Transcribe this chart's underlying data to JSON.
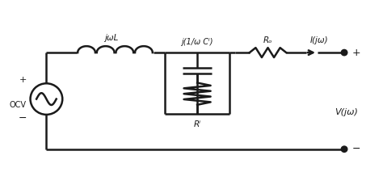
{
  "bg_color": "#ffffff",
  "line_color": "#1a1a1a",
  "line_width": 1.8,
  "fig_width": 4.74,
  "fig_height": 2.13,
  "dpi": 100,
  "labels": {
    "ocv": "OCV",
    "jwL": "jωL",
    "capacitor": "j(1/ω Cⁱ)",
    "Rf": "Rⁱ",
    "Ro": "Rₒ",
    "I": "I(jω)",
    "V": "V(jω)",
    "plus_source": "+",
    "minus_source": "−",
    "plus_term": "+",
    "minus_term": "−"
  }
}
